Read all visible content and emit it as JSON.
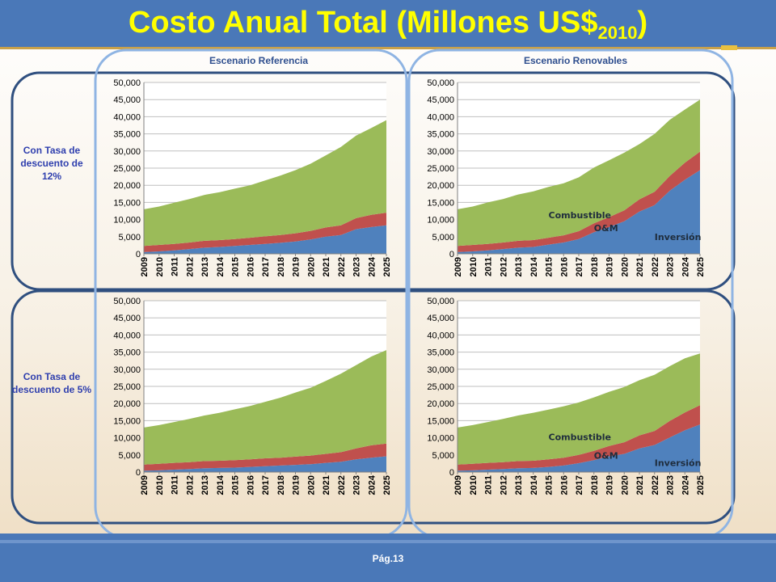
{
  "header": {
    "title": "Costo Anual Total (Millones US$",
    "title_sub": "2010",
    "title_close": ")"
  },
  "footer": {
    "page": "Pág.13"
  },
  "columns": [
    "Escenario Referencia",
    "Escenario Renovables"
  ],
  "rows": [
    "Con Tasa de descuento de 12%",
    "Con Tasa de descuento de 5%"
  ],
  "colors": {
    "inversion": "#4f81bd",
    "om": "#c0504d",
    "combustible": "#9bbb59",
    "header": "#4a78b8",
    "title": "#ffff00"
  },
  "chart_data": [
    {
      "type": "area",
      "stacked": true,
      "row": "Con Tasa de descuento de 12%",
      "column": "Escenario Referencia",
      "x": [
        "2009",
        "2010",
        "2011",
        "2012",
        "2013",
        "2014",
        "2015",
        "2016",
        "2017",
        "2018",
        "2019",
        "2020",
        "2021",
        "2022",
        "2023",
        "2024",
        "2025"
      ],
      "ylim": [
        0,
        50000
      ],
      "yticks": [
        "0",
        "5,000",
        "10,000",
        "15,000",
        "20,000",
        "25,000",
        "30,000",
        "35,000",
        "40,000",
        "45,000",
        "50,000"
      ],
      "grid": true,
      "series": [
        {
          "values": [
            500,
            700,
            1000,
            1400,
            1800,
            2000,
            2300,
            2600,
            2900,
            3200,
            3600,
            4200,
            5000,
            5500,
            7200,
            7800,
            8300
          ]
        },
        {
          "values": [
            1800,
            1900,
            1900,
            1900,
            2000,
            2000,
            2000,
            2100,
            2200,
            2300,
            2400,
            2500,
            2700,
            2800,
            3200,
            3600,
            3700
          ]
        },
        {
          "values": [
            10700,
            11200,
            12000,
            12700,
            13400,
            14000,
            14700,
            15300,
            16300,
            17300,
            18400,
            19600,
            21000,
            22900,
            24100,
            25300,
            27000
          ]
        }
      ],
      "annotations": []
    },
    {
      "type": "area",
      "stacked": true,
      "row": "Con Tasa de descuento de 12%",
      "column": "Escenario Renovables",
      "x": [
        "2009",
        "2010",
        "2011",
        "2012",
        "2013",
        "2014",
        "2015",
        "2016",
        "2017",
        "2018",
        "2019",
        "2020",
        "2021",
        "2022",
        "2023",
        "2024",
        "2025"
      ],
      "ylim": [
        0,
        50000
      ],
      "yticks": [
        "0",
        "5,000",
        "10,000",
        "15,000",
        "20,000",
        "25,000",
        "30,000",
        "35,000",
        "40,000",
        "45,000",
        "50,000"
      ],
      "grid": true,
      "series": [
        {
          "name": "Inversión",
          "values": [
            500,
            700,
            1000,
            1400,
            1800,
            2000,
            2700,
            3300,
            4300,
            6300,
            7800,
            9500,
            12300,
            14200,
            18400,
            21600,
            24400
          ]
        },
        {
          "name": "O&M",
          "values": [
            1800,
            1900,
            1900,
            1900,
            2000,
            2000,
            2000,
            2100,
            2300,
            2600,
            2900,
            3200,
            3600,
            3900,
            4300,
            5000,
            5400
          ]
        },
        {
          "name": "Combustible",
          "values": [
            10700,
            11200,
            12100,
            12700,
            13500,
            14200,
            14800,
            15200,
            15700,
            16300,
            16600,
            16800,
            16100,
            16900,
            16400,
            15500,
            15200
          ]
        }
      ],
      "annotations": [
        "Combustible",
        "O&M",
        "Inversión"
      ]
    },
    {
      "type": "area",
      "stacked": true,
      "row": "Con Tasa de descuento de 5%",
      "column": "Escenario Referencia",
      "x": [
        "2009",
        "2010",
        "2011",
        "2012",
        "2013",
        "2014",
        "2015",
        "2016",
        "2017",
        "2018",
        "2019",
        "2020",
        "2021",
        "2022",
        "2023",
        "2024",
        "2025"
      ],
      "ylim": [
        0,
        50000
      ],
      "yticks": [
        "0",
        "5,000",
        "10,000",
        "15,000",
        "20,000",
        "25,000",
        "30,000",
        "35,000",
        "40,000",
        "45,000",
        "50,000"
      ],
      "grid": true,
      "series": [
        {
          "values": [
            400,
            500,
            700,
            900,
            1100,
            1200,
            1300,
            1500,
            1700,
            1900,
            2100,
            2300,
            2700,
            3000,
            3700,
            4200,
            4600
          ]
        },
        {
          "values": [
            1800,
            1900,
            2000,
            2000,
            2100,
            2100,
            2200,
            2200,
            2300,
            2300,
            2400,
            2500,
            2600,
            2800,
            3200,
            3600,
            3700
          ]
        },
        {
          "values": [
            10800,
            11300,
            11900,
            12600,
            13300,
            14000,
            14800,
            15600,
            16500,
            17500,
            18700,
            19800,
            21300,
            22900,
            24300,
            25900,
            27300
          ]
        }
      ],
      "annotations": []
    },
    {
      "type": "area",
      "stacked": true,
      "row": "Con Tasa de descuento de 5%",
      "column": "Escenario Renovables",
      "x": [
        "2009",
        "2010",
        "2011",
        "2012",
        "2013",
        "2014",
        "2015",
        "2016",
        "2017",
        "2018",
        "2019",
        "2020",
        "2021",
        "2022",
        "2023",
        "2024",
        "2025"
      ],
      "ylim": [
        0,
        50000
      ],
      "yticks": [
        "0",
        "5,000",
        "10,000",
        "15,000",
        "20,000",
        "25,000",
        "30,000",
        "35,000",
        "40,000",
        "45,000",
        "50,000"
      ],
      "grid": true,
      "series": [
        {
          "name": "Inversión",
          "values": [
            400,
            500,
            700,
            900,
            1100,
            1200,
            1500,
            1900,
            2600,
            3500,
            4600,
            5300,
            6900,
            7900,
            10100,
            12200,
            13900
          ]
        },
        {
          "name": "O&M",
          "values": [
            1800,
            1900,
            2000,
            2000,
            2100,
            2100,
            2200,
            2300,
            2400,
            2700,
            3000,
            3400,
            3800,
            4100,
            4800,
            5200,
            5600
          ]
        },
        {
          "name": "Combustible",
          "values": [
            10800,
            11300,
            11900,
            12600,
            13300,
            14000,
            14500,
            15000,
            15300,
            15600,
            15800,
            16100,
            16100,
            16400,
            16000,
            15800,
            15100
          ]
        }
      ],
      "annotations": [
        "Combustible",
        "O&M",
        "Inversión"
      ]
    }
  ]
}
